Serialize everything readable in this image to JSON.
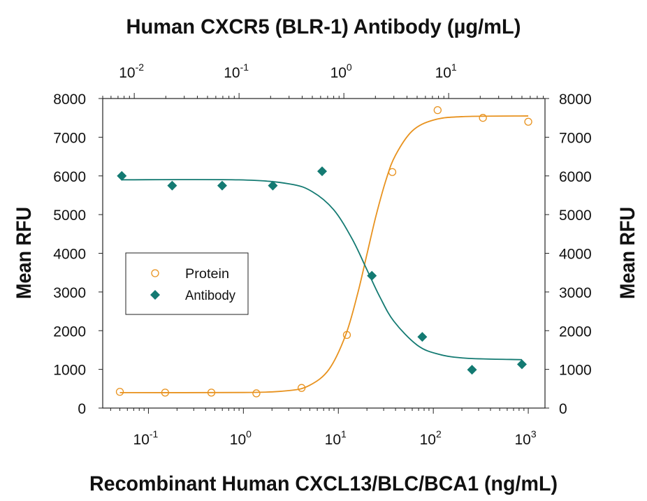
{
  "chart_data": {
    "type": "scatter",
    "title": "Human CXCR5 (BLR-1) Antibody (µg/mL)",
    "xlabel": "Recombinant Human CXCL13/BLC/BCA1 (ng/mL)",
    "ylabel": "Mean RFU",
    "y2label": "Mean RFU",
    "xscale": "log",
    "x2scale": "log",
    "xlim": [
      0.033,
      1500
    ],
    "xticks": [
      {
        "value": 0.1,
        "label": "10",
        "exponent": "-1"
      },
      {
        "value": 1,
        "label": "10",
        "exponent": "0"
      },
      {
        "value": 10,
        "label": "10",
        "exponent": "1"
      },
      {
        "value": 100,
        "label": "10",
        "exponent": "2"
      },
      {
        "value": 1000,
        "label": "10",
        "exponent": "3"
      }
    ],
    "x2lim": [
      0.005,
      83
    ],
    "x2ticks": [
      {
        "value": 0.01,
        "label": "10",
        "exponent": "-2"
      },
      {
        "value": 0.1,
        "label": "10",
        "exponent": "-1"
      },
      {
        "value": 1,
        "label": "10",
        "exponent": "0"
      },
      {
        "value": 10,
        "label": "10",
        "exponent": "1"
      }
    ],
    "ylim": [
      0,
      8000
    ],
    "yticks": [
      0,
      1000,
      2000,
      3000,
      4000,
      5000,
      6000,
      7000,
      8000
    ],
    "y2lim": [
      0,
      8000
    ],
    "y2ticks": [
      0,
      1000,
      2000,
      3000,
      4000,
      5000,
      6000,
      7000,
      8000
    ],
    "series": [
      {
        "name": "Protein",
        "color": "#e8921e",
        "marker": "circle",
        "axis": "x",
        "x": [
          0.05,
          0.15,
          0.46,
          1.37,
          4.1,
          12.3,
          37,
          111,
          333,
          1000
        ],
        "values": [
          420,
          400,
          400,
          380,
          520,
          1890,
          6100,
          7700,
          7500,
          7400
        ],
        "curve": {
          "x": [
            0.05,
            1,
            3,
            5,
            8,
            12,
            16,
            20,
            25,
            32,
            40,
            60,
            100,
            200,
            1000
          ],
          "values": [
            400,
            403,
            451,
            590,
            1006,
            1902,
            2966,
            3975,
            4983,
            5921,
            6537,
            7162,
            7442,
            7532,
            7550
          ]
        }
      },
      {
        "name": "Antibody",
        "color": "#137a72",
        "marker": "diamond",
        "axis": "x2",
        "x": [
          0.0076,
          0.023,
          0.069,
          0.21,
          0.62,
          1.85,
          5.6,
          16.7,
          50
        ],
        "values": [
          6000,
          5750,
          5750,
          5750,
          6120,
          3420,
          1840,
          990,
          1130
        ],
        "curve": {
          "x": [
            0.0076,
            0.1,
            0.3,
            0.5,
            0.8,
            1.2,
            1.66,
            2.2,
            3,
            5,
            8,
            15,
            50
          ],
          "values": [
            5900,
            5898,
            5795,
            5592,
            5125,
            4371,
            3575,
            2878,
            2244,
            1628,
            1392,
            1287,
            1251
          ]
        }
      }
    ]
  }
}
